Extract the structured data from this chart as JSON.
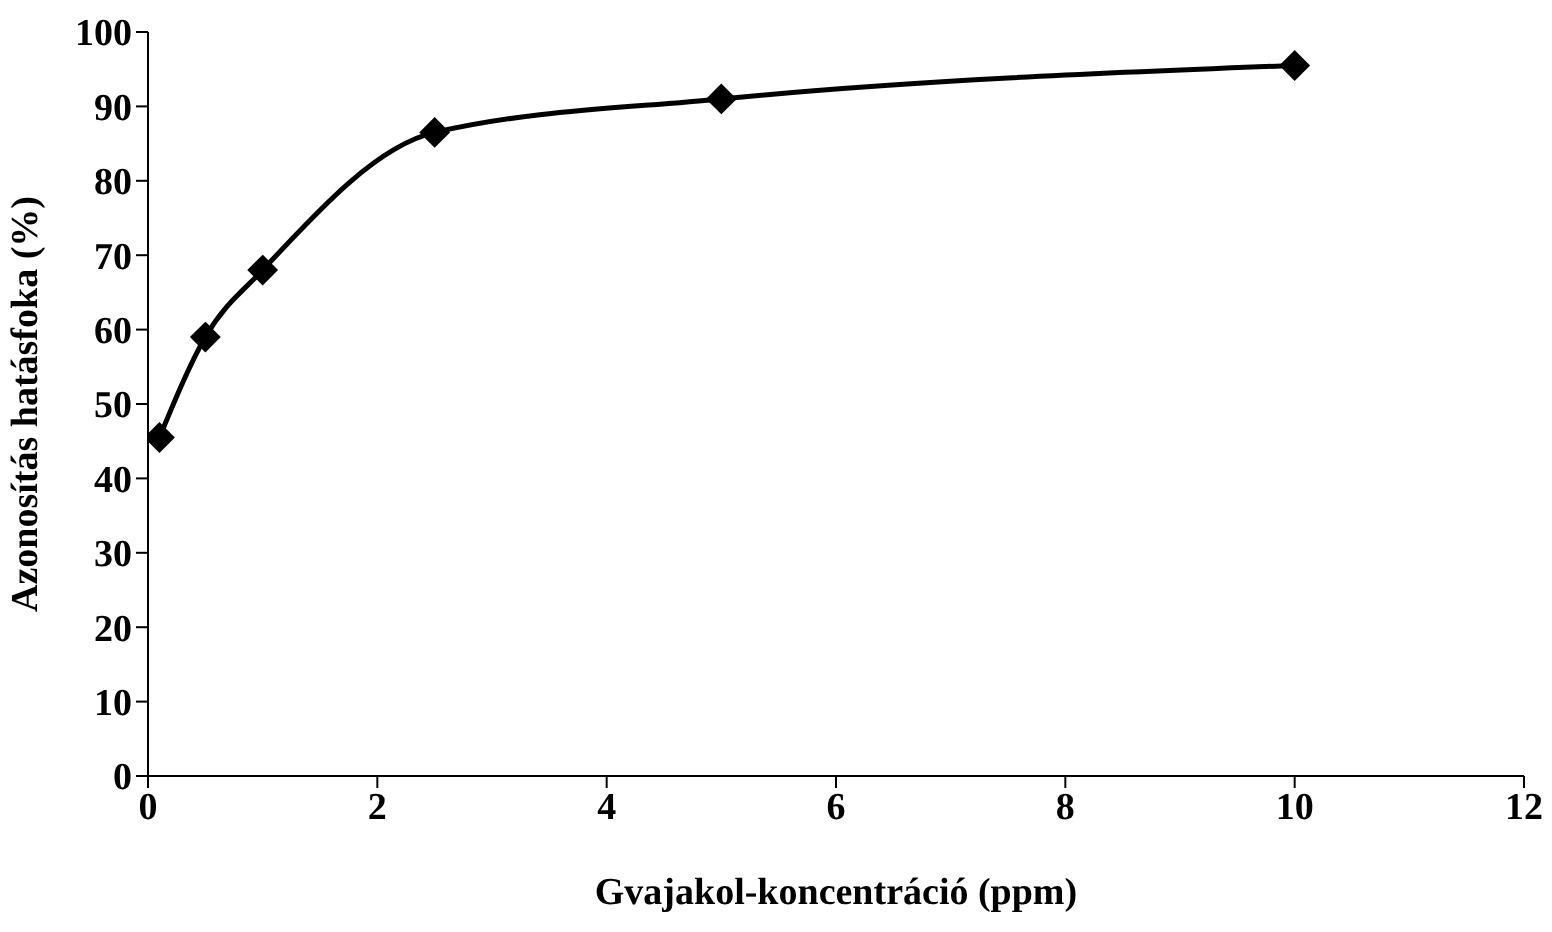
{
  "chart_data": {
    "type": "line",
    "xlabel": "Gvajakol-koncentráció (ppm)",
    "ylabel": "Azonosítás hatásfoka (%)",
    "x": [
      0.1,
      0.5,
      1,
      2.5,
      5,
      10
    ],
    "series": [
      {
        "color": "#000000",
        "values": [
          45.5,
          59,
          68,
          86.5,
          91,
          95.5
        ]
      }
    ],
    "xlim": [
      0,
      12
    ],
    "xticks": [
      0,
      2,
      4,
      6,
      8,
      10,
      12
    ],
    "ylim": [
      0,
      100
    ],
    "yticks": [
      0,
      10,
      20,
      30,
      40,
      50,
      60,
      70,
      80,
      90,
      100
    ],
    "marker": "diamond",
    "line_style": "solid",
    "grid": false,
    "legend": false
  }
}
